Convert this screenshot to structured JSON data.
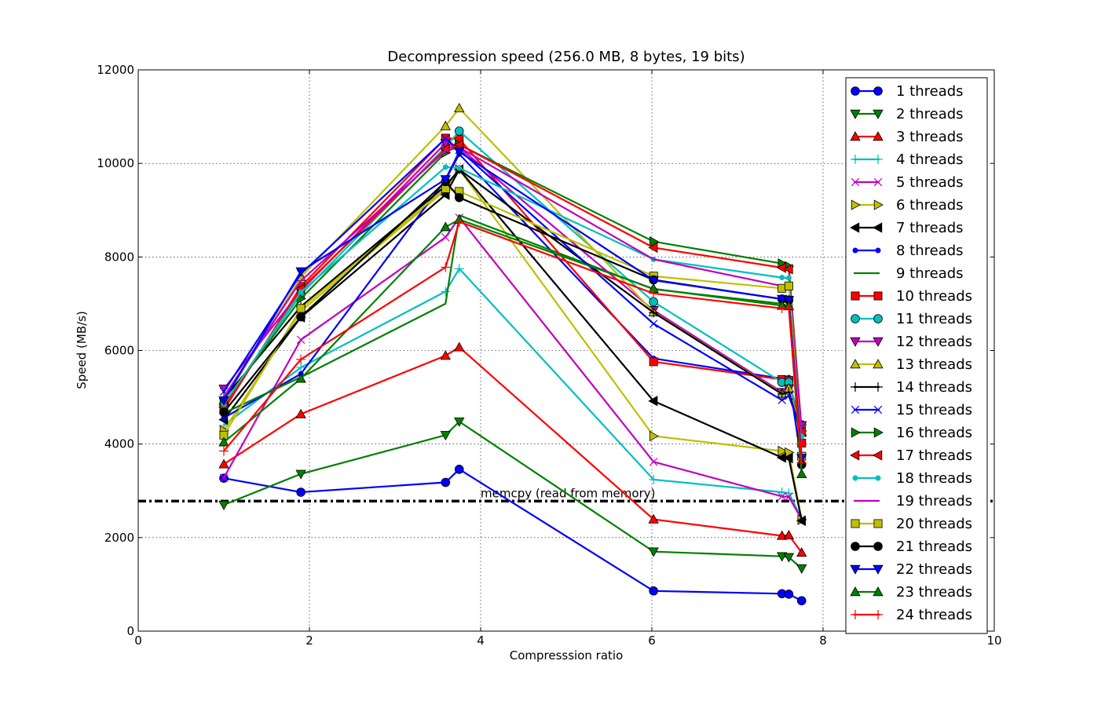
{
  "chart_data": {
    "type": "line",
    "title": "Decompression speed (256.0 MB, 8 bytes, 19 bits)",
    "xlabel": "Compresssion ratio",
    "ylabel": "Speed (MB/s)",
    "xlim": [
      0,
      10
    ],
    "ylim": [
      0,
      12000
    ],
    "xticks": [
      "0",
      "2",
      "4",
      "6",
      "8",
      "10"
    ],
    "yticks": [
      "0",
      "2000",
      "4000",
      "6000",
      "8000",
      "10000",
      "12000"
    ],
    "grid": true,
    "legend_position": "right",
    "x": [
      1.0,
      1.9,
      3.59,
      3.75,
      6.02,
      7.52,
      7.6,
      7.75
    ],
    "reference_line": {
      "label": "memcpy (read from memory)",
      "y": 2780,
      "style": "dash-dot"
    },
    "series": [
      {
        "name": "1 threads",
        "color": "#0000ff",
        "marker": "circle",
        "values": [
          3270,
          2970,
          3180,
          3460,
          860,
          800,
          790,
          650
        ]
      },
      {
        "name": "2 threads",
        "color": "#008000",
        "marker": "triangle-down",
        "values": [
          2700,
          3360,
          4190,
          4480,
          1700,
          1600,
          1580,
          1340
        ]
      },
      {
        "name": "3 threads",
        "color": "#ff0000",
        "marker": "triangle-up",
        "values": [
          3570,
          4640,
          5890,
          6070,
          2390,
          2040,
          2050,
          1680
        ]
      },
      {
        "name": "4 threads",
        "color": "#00bfbf",
        "marker": "plus",
        "values": [
          4400,
          5640,
          7260,
          7750,
          3240,
          2970,
          2950,
          2400
        ]
      },
      {
        "name": "5 threads",
        "color": "#bf00bf",
        "marker": "x",
        "values": [
          3280,
          6230,
          8420,
          8840,
          3620,
          2880,
          2870,
          2390
        ]
      },
      {
        "name": "6 threads",
        "color": "#bfbf00",
        "marker": "triangle-right",
        "values": [
          4290,
          6840,
          9430,
          9870,
          4170,
          3850,
          3820,
          2380
        ]
      },
      {
        "name": "7 threads",
        "color": "#000000",
        "marker": "triangle-left",
        "values": [
          4520,
          6710,
          9330,
          9870,
          4920,
          3710,
          3700,
          2360
        ]
      },
      {
        "name": "8 threads",
        "color": "#0000ff",
        "marker": "point",
        "values": [
          4560,
          5500,
          9650,
          10200,
          5830,
          5400,
          5420,
          3580
        ]
      },
      {
        "name": "9 threads",
        "color": "#008000",
        "marker": "none",
        "values": [
          4660,
          5430,
          7000,
          8890,
          7310,
          7000,
          6950,
          3650
        ]
      },
      {
        "name": "10 threads",
        "color": "#ff0000",
        "marker": "square",
        "values": [
          4730,
          7370,
          10540,
          10520,
          5760,
          5380,
          5360,
          4020
        ]
      },
      {
        "name": "11 threads",
        "color": "#00bfbf",
        "marker": "circle",
        "values": [
          4850,
          7200,
          10350,
          10690,
          7040,
          5320,
          5320,
          4410
        ]
      },
      {
        "name": "12 threads",
        "color": "#bf00bf",
        "marker": "triangle-down",
        "values": [
          5180,
          7280,
          10430,
          10340,
          6860,
          5110,
          5180,
          4400
        ]
      },
      {
        "name": "13 threads",
        "color": "#bfbf00",
        "marker": "triangle-up",
        "values": [
          4930,
          7570,
          10800,
          11180,
          6820,
          5080,
          5190,
          4250
        ]
      },
      {
        "name": "14 threads",
        "color": "#000000",
        "marker": "plus",
        "values": [
          4970,
          6940,
          9520,
          9870,
          6810,
          5070,
          5110,
          4200
        ]
      },
      {
        "name": "15 threads",
        "color": "#0000ff",
        "marker": "x",
        "values": [
          5120,
          7640,
          10530,
          10290,
          6570,
          4940,
          5030,
          4280
        ]
      },
      {
        "name": "16 threads",
        "color": "#008000",
        "marker": "triangle-right",
        "values": [
          4870,
          7110,
          10230,
          10400,
          8330,
          7860,
          7800,
          4280
        ]
      },
      {
        "name": "17 threads",
        "color": "#ff0000",
        "marker": "triangle-left",
        "values": [
          4790,
          7320,
          10310,
          10400,
          8200,
          7770,
          7740,
          4260
        ]
      },
      {
        "name": "18 threads",
        "color": "#00bfbf",
        "marker": "point",
        "values": [
          4850,
          7250,
          9920,
          9900,
          7950,
          7560,
          7550,
          4160
        ]
      },
      {
        "name": "19 threads",
        "color": "#bf00bf",
        "marker": "none",
        "values": [
          5010,
          7490,
          10270,
          10340,
          7950,
          7380,
          7390,
          4230
        ]
      },
      {
        "name": "20 threads",
        "color": "#bfbf00",
        "marker": "square",
        "values": [
          4190,
          6900,
          9460,
          9400,
          7590,
          7330,
          7380,
          3740
        ]
      },
      {
        "name": "21 threads",
        "color": "#000000",
        "marker": "circle",
        "values": [
          4680,
          6720,
          9610,
          9270,
          7510,
          7100,
          7080,
          3560
        ]
      },
      {
        "name": "22 threads",
        "color": "#0000ff",
        "marker": "triangle-down",
        "values": [
          4930,
          7690,
          9660,
          10250,
          7500,
          7100,
          7080,
          3700
        ]
      },
      {
        "name": "23 threads",
        "color": "#008000",
        "marker": "triangle-up",
        "values": [
          4040,
          5400,
          8640,
          8800,
          7320,
          6960,
          6950,
          3360
        ]
      },
      {
        "name": "24 threads",
        "color": "#ff0000",
        "marker": "plus",
        "values": [
          3850,
          5810,
          7780,
          8750,
          7220,
          6900,
          6900,
          3600
        ]
      }
    ]
  }
}
